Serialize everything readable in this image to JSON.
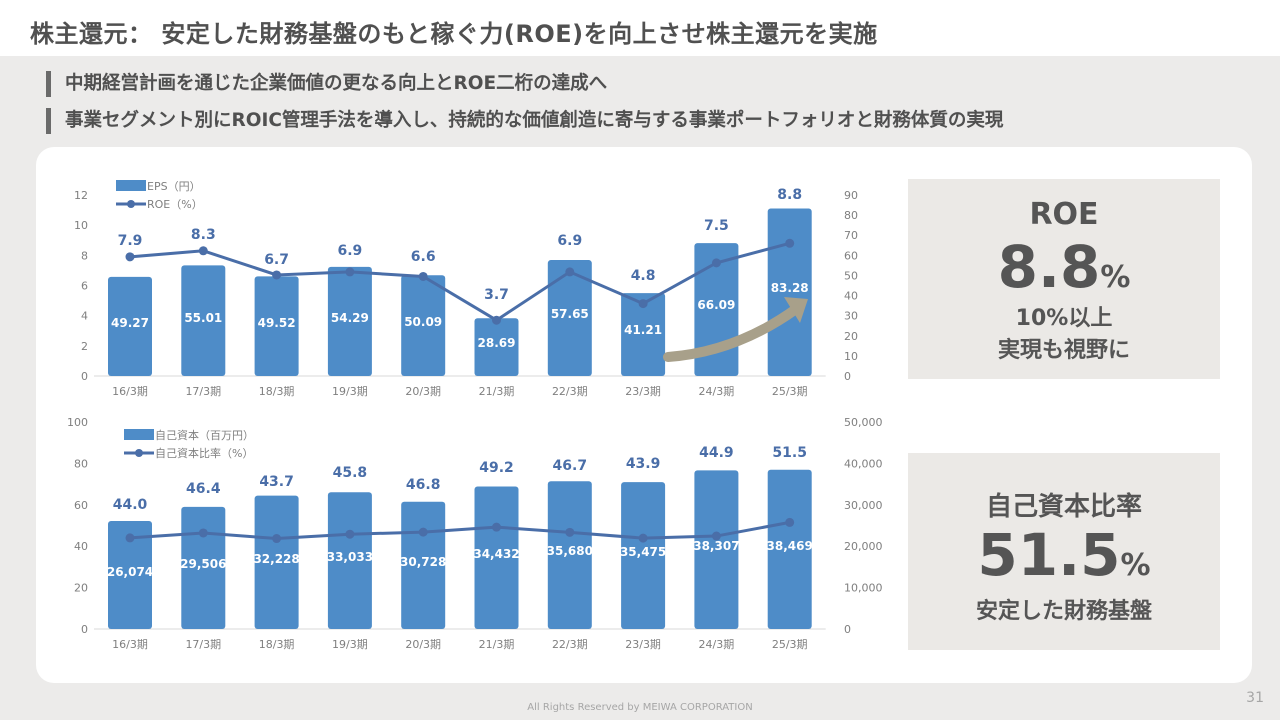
{
  "slide": {
    "title": "株主還元： 安定した財務基盤のもと稼ぐ力(ROE)を向上させ株主還元を実施",
    "bullets": [
      "中期経営計画を通じた企業価値の更なる向上とROE二桁の達成へ",
      "事業セグメント別にROIC管理手法を導入し、持続的な価値創造に寄与する事業ポートフォリオと財務体質の実現"
    ],
    "footer": "All Rights Reserved by MEIWA CORPORATION",
    "page_number": "31"
  },
  "kpi_roe": {
    "title": "ROE",
    "value": "8.8",
    "unit": "%",
    "sub1": "10%以上",
    "sub2": "実現も視野に"
  },
  "kpi_equity": {
    "title": "自己資本比率",
    "value": "51.5",
    "unit": "%",
    "sub1": "安定した財務基盤"
  },
  "colors": {
    "bar": "#4e8cc8",
    "line": "#4a6ea8",
    "line_label": "#4a6ea8",
    "axis_text": "#7f7f7f",
    "kpi_bg": "#ebe9e6",
    "arrow": "#a8a08a"
  },
  "chart_data": [
    {
      "type": "bar",
      "categories": [
        "16/3期",
        "17/3期",
        "18/3期",
        "19/3期",
        "20/3期",
        "21/3期",
        "22/3期",
        "23/3期",
        "24/3期",
        "25/3期"
      ],
      "series": [
        {
          "name": "EPS（円）",
          "type": "bar",
          "axis": "right",
          "values": [
            49.27,
            55.01,
            49.52,
            54.29,
            50.09,
            28.69,
            57.65,
            41.21,
            66.09,
            83.28
          ]
        },
        {
          "name": "ROE（%）",
          "type": "line",
          "axis": "left",
          "values": [
            7.9,
            8.3,
            6.7,
            6.9,
            6.6,
            3.7,
            6.9,
            4.8,
            7.5,
            8.8
          ]
        }
      ],
      "y_left": {
        "ylim": [
          0,
          12
        ],
        "ticks": [
          "0",
          "2",
          "4",
          "6",
          "8",
          "10",
          "12"
        ]
      },
      "y_right": {
        "ylim": [
          0,
          90
        ],
        "ticks": [
          "0",
          "10",
          "20",
          "30",
          "40",
          "50",
          "60",
          "70",
          "80",
          "90"
        ]
      },
      "legend": "top-left",
      "grid": false
    },
    {
      "type": "bar",
      "categories": [
        "16/3期",
        "17/3期",
        "18/3期",
        "19/3期",
        "20/3期",
        "21/3期",
        "22/3期",
        "23/3期",
        "24/3期",
        "25/3期"
      ],
      "series": [
        {
          "name": "自己資本（百万円）",
          "type": "bar",
          "axis": "right",
          "values": [
            26074,
            29506,
            32228,
            33033,
            30728,
            34432,
            35680,
            35475,
            38307,
            38469
          ],
          "labels": [
            "26,074",
            "29,506",
            "32,228",
            "33,033",
            "30,728",
            "34,432",
            "35,680",
            "35,475",
            "38,307",
            "38,469"
          ]
        },
        {
          "name": "自己資本比率（%）",
          "type": "line",
          "axis": "left",
          "values": [
            44.0,
            46.4,
            43.7,
            45.8,
            46.8,
            49.2,
            46.7,
            43.9,
            44.9,
            51.5
          ],
          "labels": [
            "44.0",
            "46.4",
            "43.7",
            "45.8",
            "46.8",
            "49.2",
            "46.7",
            "43.9",
            "44.9",
            "51.5"
          ]
        }
      ],
      "y_left": {
        "ylim": [
          0,
          100
        ],
        "ticks": [
          "0",
          "20",
          "40",
          "60",
          "80",
          "100"
        ]
      },
      "y_right": {
        "ylim": [
          0,
          50000
        ],
        "ticks": [
          "0",
          "10,000",
          "20,000",
          "30,000",
          "40,000",
          "50,000"
        ]
      },
      "legend": "top-left",
      "grid": false
    }
  ]
}
